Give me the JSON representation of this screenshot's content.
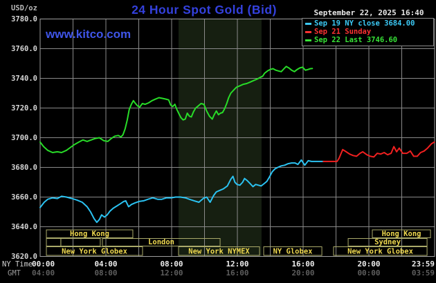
{
  "header": {
    "unit_label": "USD/oz",
    "title": "24 Hour Spot Gold (Bid)",
    "watermark": "www.kitco.com",
    "timestamp": "September 22, 2025 16:40"
  },
  "legend": {
    "items": [
      {
        "label": "Sep 19 NY close 3684.00",
        "color": "#3cc9f5"
      },
      {
        "label": "Sep 21 Sunday",
        "color": "#fb3232"
      },
      {
        "label": "Sep 22 Last 3746.60",
        "color": "#37e237"
      }
    ]
  },
  "axes": {
    "ny_time_caption": "NY Time",
    "gmt_caption": "GMT"
  },
  "colors": {
    "background": "#000000",
    "grid": "#8a8a8a",
    "border": "#a0a0a0",
    "band": "#161f11",
    "series_cyan": "#2bc3f2",
    "series_red": "#f02020",
    "series_green": "#28dd28",
    "session_border": "#aaaa6a",
    "session_text": "#eed84f"
  },
  "chart_data": {
    "type": "line",
    "title": "24 Hour Spot Gold (Bid)",
    "ylabel": "USD/oz",
    "ylim": [
      3620,
      3780
    ],
    "xlim_hours": [
      0,
      24
    ],
    "grid": true,
    "legend_position": "top-right",
    "yticks": [
      {
        "v": 3780,
        "label": "3780.0"
      },
      {
        "v": 3760,
        "label": "3760.0"
      },
      {
        "v": 3740,
        "label": "3740.0"
      },
      {
        "v": 3720,
        "label": "3720.0"
      },
      {
        "v": 3700,
        "label": "3700.0"
      },
      {
        "v": 3680,
        "label": "3680.0"
      },
      {
        "v": 3660,
        "label": "3660.0"
      },
      {
        "v": 3640,
        "label": "3640.0"
      },
      {
        "v": 3620,
        "label": "3620.0"
      }
    ],
    "x_ticks": [
      {
        "t": 0,
        "ny": "00:00",
        "gmt": "04:00"
      },
      {
        "t": 4,
        "ny": "04:00",
        "gmt": "08:00"
      },
      {
        "t": 8,
        "ny": "08:00",
        "gmt": "12:00"
      },
      {
        "t": 12,
        "ny": "12:00",
        "gmt": "16:00"
      },
      {
        "t": 16,
        "ny": "16:00",
        "gmt": "20:00"
      },
      {
        "t": 20,
        "ny": "20:00",
        "gmt": "00:00"
      },
      {
        "t": 23.983,
        "ny": "23:59",
        "gmt": "03:59"
      }
    ],
    "nymex_band_hours": [
      8.42,
      13.47
    ],
    "sessions": [
      {
        "label": "Hong Kong",
        "row": 1,
        "t0": 0.38,
        "t1": 5.64
      },
      {
        "label": "",
        "row": 2,
        "t0": 0.38,
        "t1": 1.26
      },
      {
        "label": "",
        "row": 2,
        "t0": 1.26,
        "t1": 3.66
      },
      {
        "label": "London",
        "row": 2,
        "t0": 3.79,
        "t1": 10.95
      },
      {
        "label": "New York Globex",
        "row": 3,
        "t0": 0.38,
        "t1": 6.23
      },
      {
        "label": "New York NYMEX",
        "row": 3,
        "t0": 8.42,
        "t1": 13.35
      },
      {
        "label": "NY Globex",
        "row": 3,
        "t0": 13.6,
        "t1": 17.14
      },
      {
        "label": "Hong Kong",
        "row": 1,
        "t0": 20.21,
        "t1": 23.75
      },
      {
        "label": "Sydney",
        "row": 2,
        "t0": 18.74,
        "t1": 23.54
      },
      {
        "label": "New York Globex",
        "row": 3,
        "t0": 17.85,
        "t1": 23.54
      }
    ],
    "series": [
      {
        "name": "sep-19-ny-close",
        "color_key": "series_cyan",
        "points": [
          [
            0,
            3653
          ],
          [
            0.25,
            3656.5
          ],
          [
            0.46,
            3658.5
          ],
          [
            0.76,
            3659.5
          ],
          [
            1.05,
            3659
          ],
          [
            1.3,
            3660.5
          ],
          [
            1.6,
            3660
          ],
          [
            1.93,
            3659
          ],
          [
            2.23,
            3658
          ],
          [
            2.56,
            3656.5
          ],
          [
            2.86,
            3653.5
          ],
          [
            3.07,
            3650
          ],
          [
            3.28,
            3645.5
          ],
          [
            3.45,
            3643
          ],
          [
            3.61,
            3645
          ],
          [
            3.74,
            3648
          ],
          [
            3.91,
            3646.5
          ],
          [
            4.08,
            3648
          ],
          [
            4.25,
            3650.5
          ],
          [
            4.45,
            3652.5
          ],
          [
            4.67,
            3654
          ],
          [
            4.88,
            3655.5
          ],
          [
            5.08,
            3657
          ],
          [
            5.21,
            3657.5
          ],
          [
            5.38,
            3653.5
          ],
          [
            5.55,
            3655
          ],
          [
            5.76,
            3656
          ],
          [
            6.01,
            3657
          ],
          [
            6.3,
            3657.5
          ],
          [
            6.56,
            3658.5
          ],
          [
            6.85,
            3659.5
          ],
          [
            7.15,
            3658.5
          ],
          [
            7.4,
            3658.5
          ],
          [
            7.69,
            3659.5
          ],
          [
            7.98,
            3659.5
          ],
          [
            8.24,
            3660
          ],
          [
            8.53,
            3660
          ],
          [
            8.83,
            3659.5
          ],
          [
            9.08,
            3658.5
          ],
          [
            9.37,
            3657.5
          ],
          [
            9.66,
            3656.5
          ],
          [
            9.92,
            3659
          ],
          [
            10.13,
            3660
          ],
          [
            10.34,
            3656.5
          ],
          [
            10.55,
            3661
          ],
          [
            10.72,
            3663.5
          ],
          [
            10.93,
            3664.5
          ],
          [
            11.14,
            3665.5
          ],
          [
            11.39,
            3667.5
          ],
          [
            11.6,
            3672
          ],
          [
            11.73,
            3674
          ],
          [
            11.85,
            3670
          ],
          [
            11.98,
            3668.5
          ],
          [
            12.15,
            3668
          ],
          [
            12.32,
            3670
          ],
          [
            12.44,
            3672.5
          ],
          [
            12.61,
            3671
          ],
          [
            12.78,
            3669
          ],
          [
            12.95,
            3667
          ],
          [
            13.11,
            3668.5
          ],
          [
            13.28,
            3668
          ],
          [
            13.45,
            3667.5
          ],
          [
            13.62,
            3669
          ],
          [
            13.79,
            3670.5
          ],
          [
            13.95,
            3673.5
          ],
          [
            14.12,
            3677
          ],
          [
            14.29,
            3679
          ],
          [
            14.46,
            3680
          ],
          [
            14.67,
            3681
          ],
          [
            14.88,
            3681.5
          ],
          [
            15.09,
            3682.5
          ],
          [
            15.3,
            3683
          ],
          [
            15.51,
            3683
          ],
          [
            15.68,
            3682
          ],
          [
            15.89,
            3685
          ],
          [
            16.1,
            3681.5
          ],
          [
            16.31,
            3684.5
          ],
          [
            16.51,
            3684
          ],
          [
            16.72,
            3684
          ],
          [
            16.93,
            3684
          ],
          [
            17.23,
            3684
          ]
        ]
      },
      {
        "name": "sep-21-sunday",
        "color_key": "series_red",
        "points": [
          [
            17.23,
            3684
          ],
          [
            17.65,
            3684
          ],
          [
            18.06,
            3684
          ],
          [
            18.18,
            3686
          ],
          [
            18.31,
            3689.5
          ],
          [
            18.41,
            3692
          ],
          [
            18.62,
            3690.5
          ],
          [
            18.83,
            3689
          ],
          [
            19.04,
            3688
          ],
          [
            19.25,
            3687.5
          ],
          [
            19.46,
            3689.5
          ],
          [
            19.63,
            3690.5
          ],
          [
            19.88,
            3688.5
          ],
          [
            20.09,
            3687.5
          ],
          [
            20.3,
            3687
          ],
          [
            20.51,
            3689.5
          ],
          [
            20.72,
            3689
          ],
          [
            20.93,
            3690
          ],
          [
            21.14,
            3688.5
          ],
          [
            21.35,
            3689.5
          ],
          [
            21.52,
            3694
          ],
          [
            21.69,
            3690.5
          ],
          [
            21.85,
            3693
          ],
          [
            22.06,
            3689.5
          ],
          [
            22.31,
            3689.5
          ],
          [
            22.52,
            3691
          ],
          [
            22.73,
            3687.5
          ],
          [
            22.94,
            3687.5
          ],
          [
            23.15,
            3690
          ],
          [
            23.36,
            3691
          ],
          [
            23.57,
            3693
          ],
          [
            23.82,
            3696
          ],
          [
            23.98,
            3697
          ]
        ]
      },
      {
        "name": "sep-22-last",
        "color_key": "series_green",
        "points": [
          [
            0,
            3697
          ],
          [
            0.21,
            3694
          ],
          [
            0.46,
            3691.5
          ],
          [
            0.76,
            3690
          ],
          [
            1.05,
            3690.5
          ],
          [
            1.3,
            3690
          ],
          [
            1.6,
            3691.5
          ],
          [
            1.85,
            3693.5
          ],
          [
            2.1,
            3695.5
          ],
          [
            2.35,
            3697
          ],
          [
            2.6,
            3698.5
          ],
          [
            2.86,
            3697.5
          ],
          [
            3.11,
            3698.5
          ],
          [
            3.36,
            3699.5
          ],
          [
            3.6,
            3700
          ],
          [
            3.87,
            3698
          ],
          [
            4.12,
            3697.5
          ],
          [
            4.33,
            3699.5
          ],
          [
            4.54,
            3701
          ],
          [
            4.75,
            3701.5
          ],
          [
            4.92,
            3700.5
          ],
          [
            5.04,
            3702
          ],
          [
            5.17,
            3706
          ],
          [
            5.3,
            3712
          ],
          [
            5.42,
            3719
          ],
          [
            5.55,
            3722.5
          ],
          [
            5.67,
            3725
          ],
          [
            5.8,
            3723
          ],
          [
            5.93,
            3721.5
          ],
          [
            6.05,
            3720.5
          ],
          [
            6.22,
            3723
          ],
          [
            6.39,
            3722.5
          ],
          [
            6.6,
            3723.5
          ],
          [
            6.81,
            3725
          ],
          [
            7.02,
            3726
          ],
          [
            7.23,
            3727
          ],
          [
            7.44,
            3726.5
          ],
          [
            7.65,
            3726
          ],
          [
            7.82,
            3725.5
          ],
          [
            7.94,
            3722
          ],
          [
            8.07,
            3721
          ],
          [
            8.2,
            3722.5
          ],
          [
            8.32,
            3719
          ],
          [
            8.45,
            3716
          ],
          [
            8.57,
            3713.5
          ],
          [
            8.7,
            3712
          ],
          [
            8.83,
            3712.5
          ],
          [
            8.95,
            3716.5
          ],
          [
            9.08,
            3714.5
          ],
          [
            9.2,
            3714
          ],
          [
            9.33,
            3717.5
          ],
          [
            9.46,
            3720
          ],
          [
            9.63,
            3721.5
          ],
          [
            9.79,
            3723
          ],
          [
            9.96,
            3722.5
          ],
          [
            10.13,
            3718
          ],
          [
            10.3,
            3714.5
          ],
          [
            10.47,
            3712.5
          ],
          [
            10.59,
            3715.5
          ],
          [
            10.72,
            3718
          ],
          [
            10.85,
            3715.5
          ],
          [
            10.97,
            3716.5
          ],
          [
            11.1,
            3717
          ],
          [
            11.22,
            3719.5
          ],
          [
            11.35,
            3723
          ],
          [
            11.47,
            3727
          ],
          [
            11.6,
            3730
          ],
          [
            11.77,
            3732
          ],
          [
            11.94,
            3734
          ],
          [
            12.15,
            3735
          ],
          [
            12.36,
            3736
          ],
          [
            12.57,
            3736.5
          ],
          [
            12.78,
            3737.5
          ],
          [
            12.99,
            3738.5
          ],
          [
            13.2,
            3739.5
          ],
          [
            13.37,
            3740.5
          ],
          [
            13.54,
            3741.5
          ],
          [
            13.66,
            3743.5
          ],
          [
            13.83,
            3745
          ],
          [
            14,
            3746
          ],
          [
            14.17,
            3746.5
          ],
          [
            14.34,
            3745.5
          ],
          [
            14.5,
            3745
          ],
          [
            14.67,
            3744.5
          ],
          [
            14.84,
            3746.5
          ],
          [
            14.97,
            3748
          ],
          [
            15.13,
            3747
          ],
          [
            15.3,
            3745.5
          ],
          [
            15.47,
            3744.5
          ],
          [
            15.64,
            3746
          ],
          [
            15.8,
            3747
          ],
          [
            15.97,
            3747.5
          ],
          [
            16.14,
            3745.5
          ],
          [
            16.31,
            3746
          ],
          [
            16.44,
            3746.5
          ],
          [
            16.56,
            3746.6
          ]
        ]
      }
    ]
  }
}
